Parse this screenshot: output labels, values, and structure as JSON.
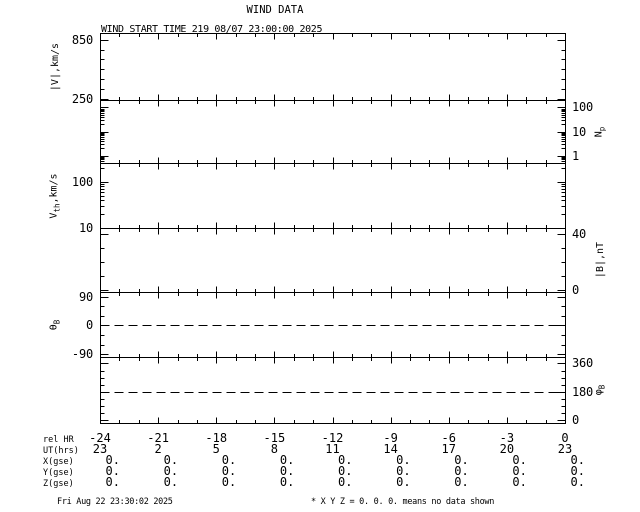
{
  "title": "WIND DATA",
  "subtitle": "WIND START TIME 219 08/07 23:00:00 2025",
  "footer": {
    "generated": "Fri Aug 22 23:30:02 2025",
    "note": "* X Y Z = 0. 0. 0. means no data shown"
  },
  "colors": {
    "background": "#ffffff",
    "ink": "#000000"
  },
  "chart_data": {
    "type": "line",
    "title": "WIND DATA",
    "subtitle": "WIND START TIME 219 08/07 23:00:00 2025",
    "note": "All six panels are empty (no data plotted); footer states X Y Z = 0. 0. 0. means no data shown",
    "grid": false,
    "x_axis": {
      "label": "rel HR",
      "range_hours": [
        -24,
        0
      ],
      "major_tick_step_hours": 3,
      "minor_tick_step_hours": 1,
      "major_tick_labels": [
        "-24",
        "-21",
        "-18",
        "-15",
        "-12",
        "-9",
        "-6",
        "-3",
        "0"
      ]
    },
    "panels": [
      {
        "id": "bulk-speed",
        "ylabel": "|V|,km/s",
        "ylabel_parts": [
          {
            "t": "|V|,km/s"
          }
        ],
        "label_side": "left",
        "scale": "linear",
        "range": [
          240,
          918
        ],
        "major_ticks": [
          {
            "value": 250,
            "label": "250"
          },
          {
            "value": 850,
            "label": "850"
          }
        ],
        "minor_ticks": [
          350,
          450,
          550,
          650,
          750
        ],
        "dashed_line_at": null,
        "series": []
      },
      {
        "id": "proton-density",
        "ylabel": "Np",
        "ylabel_parts": [
          {
            "t": "N"
          },
          {
            "t": "p",
            "sub": true
          }
        ],
        "label_side": "right",
        "scale": "log",
        "range": [
          0.49,
          205
        ],
        "major_ticks": [
          {
            "value": 1,
            "label": "1"
          },
          {
            "value": 10,
            "label": "10"
          },
          {
            "value": 100,
            "label": "100"
          }
        ],
        "minor_ticks": [
          0.5,
          0.6,
          0.7,
          0.8,
          0.9,
          2,
          3,
          4,
          5,
          6,
          7,
          8,
          9,
          20,
          30,
          40,
          50,
          60,
          70,
          80,
          90,
          200
        ],
        "dashed_line_at": null,
        "series": []
      },
      {
        "id": "thermal-speed",
        "ylabel": "Vth,km/s",
        "ylabel_parts": [
          {
            "t": "V"
          },
          {
            "t": "th",
            "sub": true
          },
          {
            "t": ",km/s"
          }
        ],
        "label_side": "left",
        "scale": "log",
        "range": [
          10,
          259
        ],
        "major_ticks": [
          {
            "value": 10,
            "label": "10"
          },
          {
            "value": 100,
            "label": "100"
          }
        ],
        "minor_ticks": [
          20,
          30,
          40,
          50,
          60,
          70,
          80,
          90,
          200
        ],
        "dashed_line_at": null,
        "series": []
      },
      {
        "id": "b-magnitude",
        "ylabel": "|B|,nT",
        "ylabel_parts": [
          {
            "t": "|B|,nT"
          }
        ],
        "label_side": "right",
        "scale": "linear",
        "range": [
          -1.4,
          44.3
        ],
        "major_ticks": [
          {
            "value": 0,
            "label": "0"
          },
          {
            "value": 40,
            "label": "40"
          }
        ],
        "minor_ticks": [
          10,
          20,
          30
        ],
        "dashed_line_at": null,
        "series": []
      },
      {
        "id": "b-theta",
        "ylabel": "θB",
        "ylabel_parts": [
          {
            "t": "θ"
          },
          {
            "t": "B",
            "sub": true
          }
        ],
        "label_side": "left",
        "scale": "linear",
        "range": [
          -98,
          104
        ],
        "major_ticks": [
          {
            "value": -90,
            "label": "-90"
          },
          {
            "value": 0,
            "label": "0"
          },
          {
            "value": 90,
            "label": "90"
          }
        ],
        "minor_ticks": [
          -60,
          -30,
          30,
          60
        ],
        "dashed_line_at": 0,
        "series": []
      },
      {
        "id": "b-phi",
        "ylabel": "φB",
        "ylabel_parts": [
          {
            "t": "φ"
          },
          {
            "t": "B",
            "sub": true
          }
        ],
        "label_side": "right",
        "scale": "linear",
        "range": [
          -19,
          401
        ],
        "major_ticks": [
          {
            "value": 0,
            "label": "0"
          },
          {
            "value": 180,
            "label": "180"
          },
          {
            "value": 360,
            "label": "360"
          }
        ],
        "minor_ticks": [
          45,
          90,
          135,
          225,
          270,
          315
        ],
        "dashed_line_at": 180,
        "series": []
      }
    ]
  },
  "table": {
    "rows": [
      {
        "label": "rel HR",
        "values": [
          "-24",
          "-21",
          "-18",
          "-15",
          "-12",
          "-9",
          "-6",
          "-3",
          "0"
        ],
        "align": "center"
      },
      {
        "label": "UT(hrs)",
        "values": [
          "23",
          "2",
          "5",
          "8",
          "11",
          "14",
          "17",
          "20",
          "23"
        ],
        "align": "center"
      },
      {
        "label": "X(gse)",
        "values": [
          "0.",
          "0.",
          "0.",
          "0.",
          "0.",
          "0.",
          "0.",
          "0.",
          "0."
        ],
        "align": "right"
      },
      {
        "label": "Y(gse)",
        "values": [
          "0.",
          "0.",
          "0.",
          "0.",
          "0.",
          "0.",
          "0.",
          "0.",
          "0."
        ],
        "align": "right"
      },
      {
        "label": "Z(gse)",
        "values": [
          "0.",
          "0.",
          "0.",
          "0.",
          "0.",
          "0.",
          "0.",
          "0.",
          "0."
        ],
        "align": "right"
      }
    ]
  }
}
